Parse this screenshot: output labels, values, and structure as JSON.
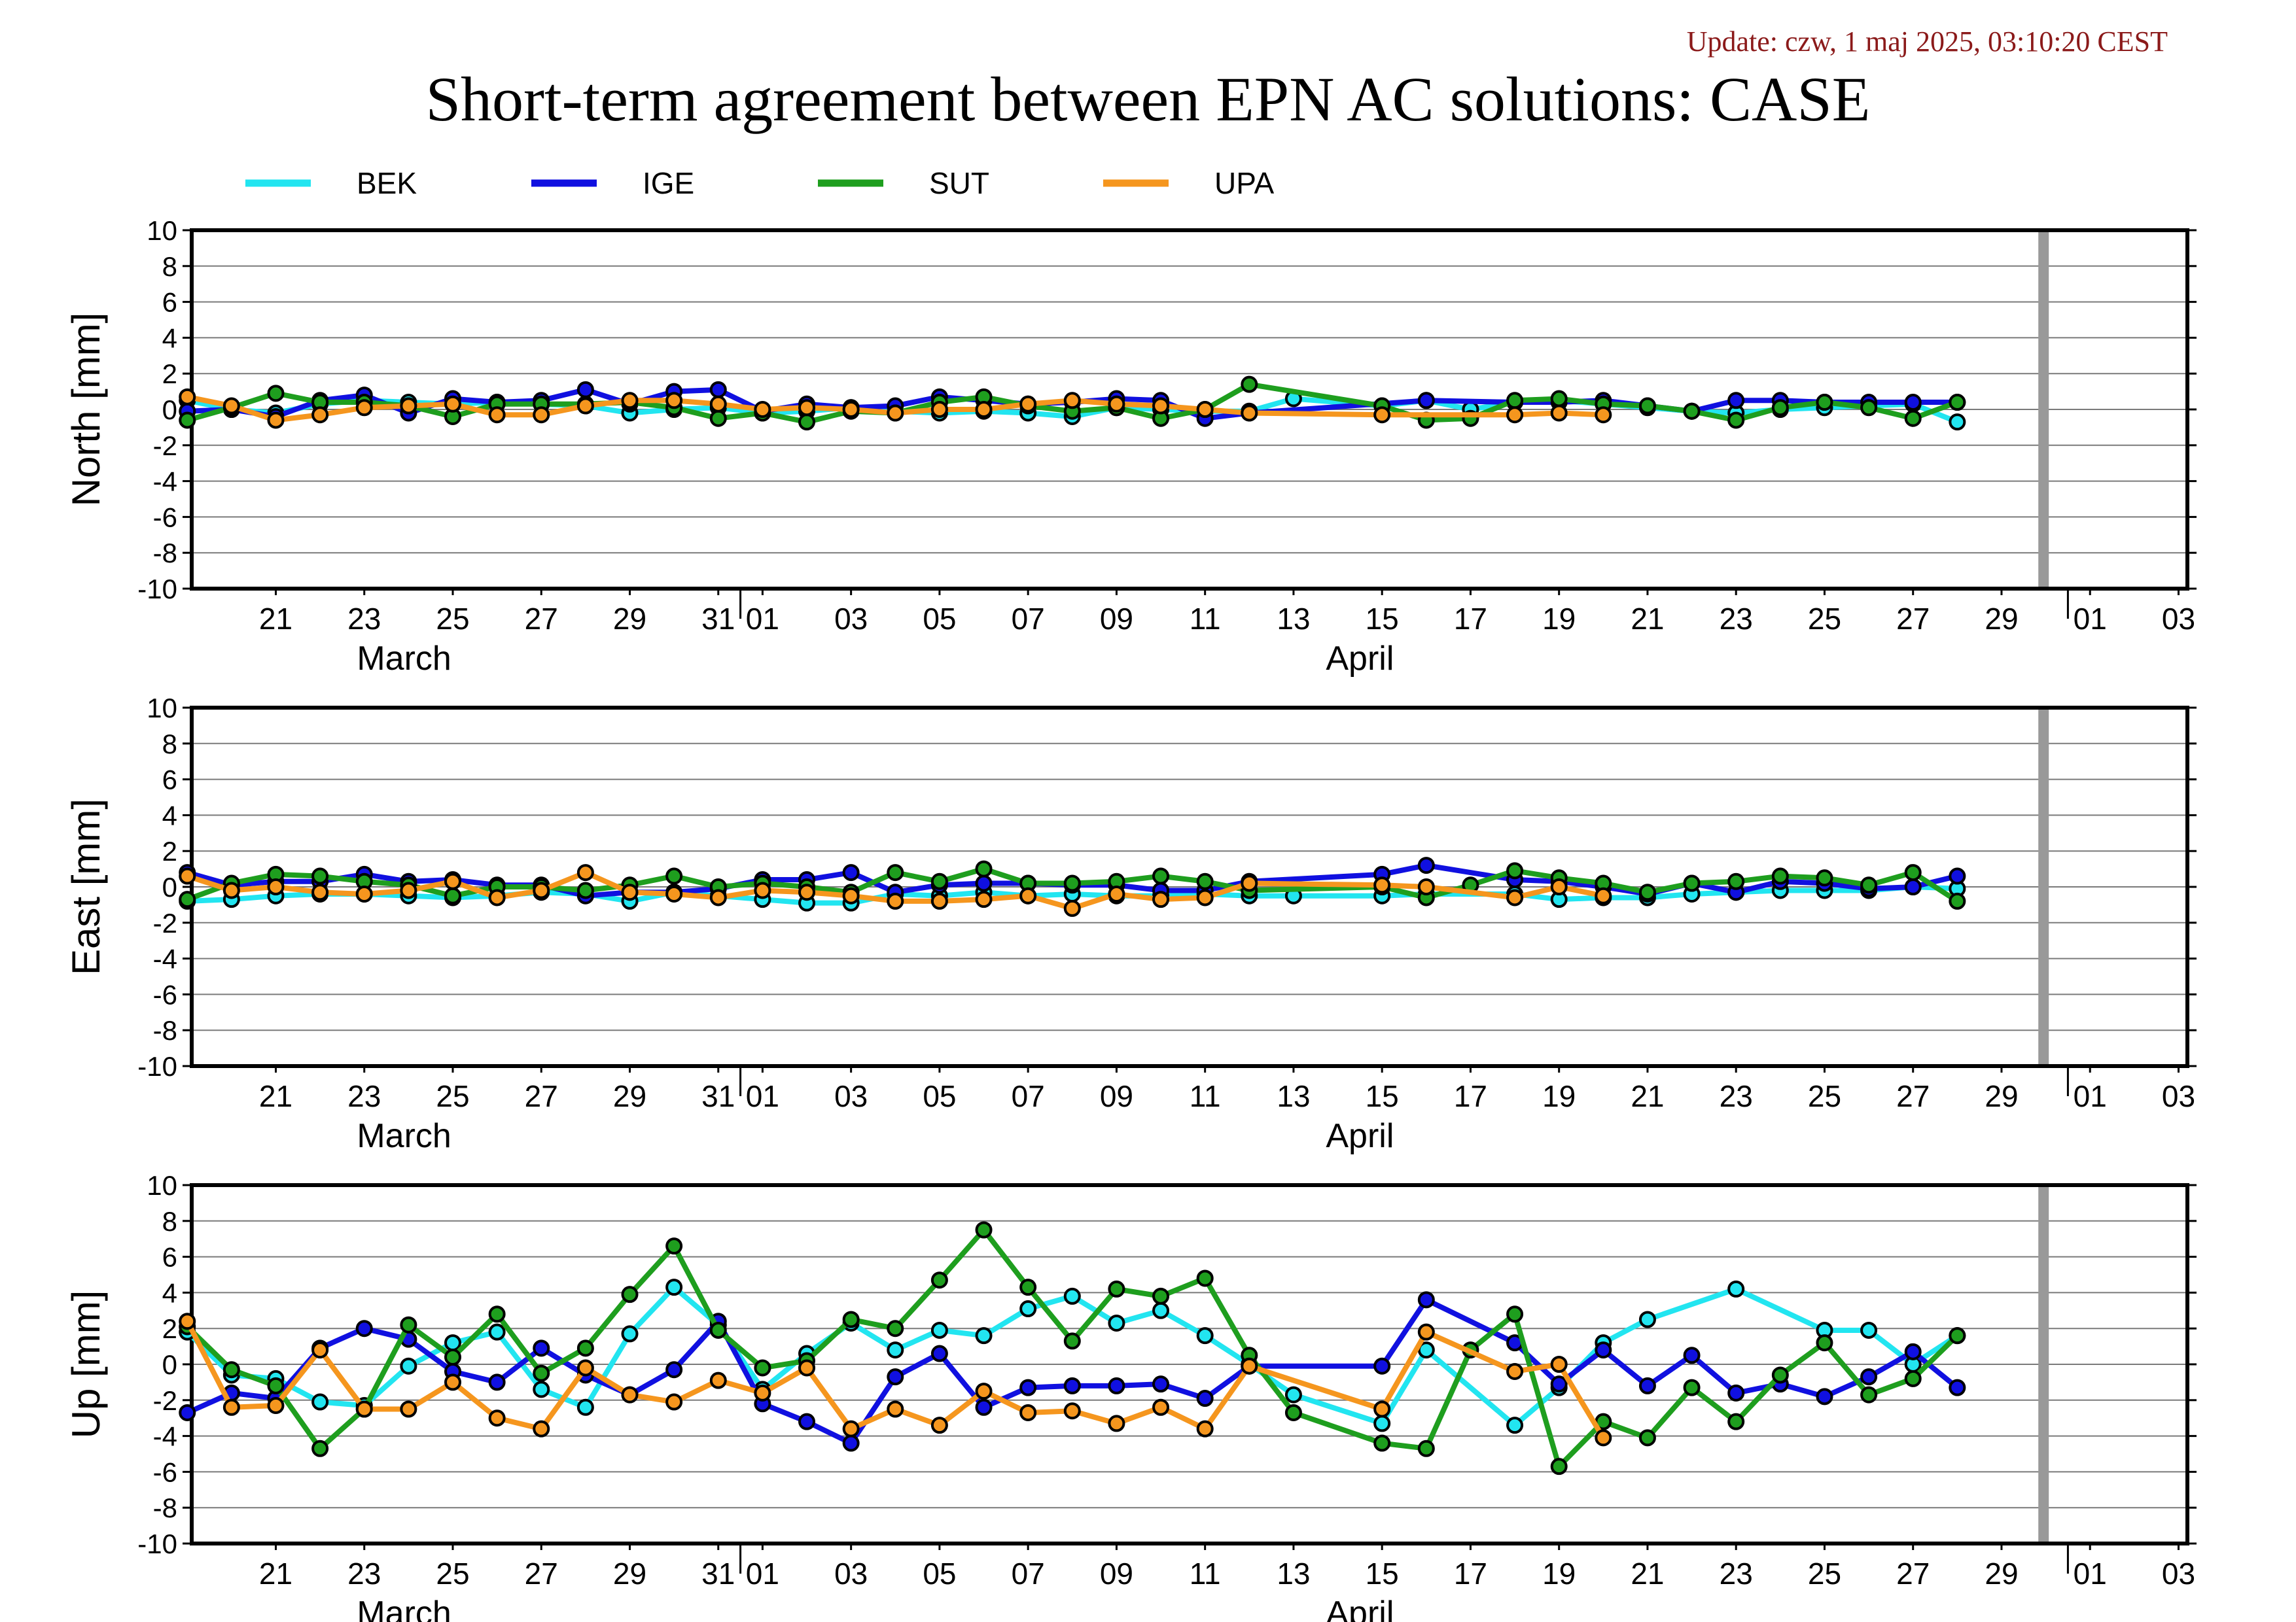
{
  "header": {
    "update": "Update: czw, 1 maj 2025, 03:10:20 CEST",
    "title": "Short-term agreement between EPN AC solutions: CASE"
  },
  "chart_data": {
    "type": "line",
    "title": "Short-term agreement between EPN AC solutions: CASE",
    "x_days": [
      19,
      20,
      21,
      22,
      23,
      24,
      25,
      26,
      27,
      28,
      29,
      30,
      31,
      32,
      33,
      34,
      35,
      36,
      37,
      38,
      39,
      40,
      41,
      42,
      43,
      44,
      45,
      46,
      47,
      48,
      49,
      50,
      51,
      52,
      53,
      54,
      55,
      56,
      57,
      58,
      59,
      60,
      61
    ],
    "x_day_ref": "19 = March 19, 2025; 32 = April 01",
    "xlim": [
      19.1,
      64.2
    ],
    "marker_day": 60,
    "x_ticks": [
      {
        "d": 21,
        "label": "21"
      },
      {
        "d": 23,
        "label": "23"
      },
      {
        "d": 25,
        "label": "25"
      },
      {
        "d": 27,
        "label": "27"
      },
      {
        "d": 29,
        "label": "29"
      },
      {
        "d": 31,
        "label": "31"
      },
      {
        "d": 32,
        "label": "01"
      },
      {
        "d": 34,
        "label": "03"
      },
      {
        "d": 36,
        "label": "05"
      },
      {
        "d": 38,
        "label": "07"
      },
      {
        "d": 40,
        "label": "09"
      },
      {
        "d": 42,
        "label": "11"
      },
      {
        "d": 44,
        "label": "13"
      },
      {
        "d": 46,
        "label": "15"
      },
      {
        "d": 48,
        "label": "17"
      },
      {
        "d": 50,
        "label": "19"
      },
      {
        "d": 52,
        "label": "21"
      },
      {
        "d": 54,
        "label": "23"
      },
      {
        "d": 56,
        "label": "25"
      },
      {
        "d": 58,
        "label": "27"
      },
      {
        "d": 60,
        "label": "29"
      },
      {
        "d": 62,
        "label": "01"
      },
      {
        "d": 64,
        "label": "03"
      }
    ],
    "months": [
      {
        "d": 23.5,
        "label": "March"
      },
      {
        "d": 45,
        "label": "April"
      },
      {
        "d": 45,
        "label": "April"
      },
      {
        "d": 45,
        "label": "April"
      }
    ],
    "month_labels": {
      "march": "March",
      "april": "April"
    },
    "ylim": [
      -10,
      10
    ],
    "y_ticks": [
      10,
      8,
      6,
      4,
      2,
      0,
      -2,
      -4,
      -6,
      -8,
      -10
    ],
    "legend": [
      {
        "name": "BEK",
        "color": "#22e5f0"
      },
      {
        "name": "IGE",
        "color": "#1010e0"
      },
      {
        "name": "SUT",
        "color": "#1e9e1e"
      },
      {
        "name": "UPA",
        "color": "#f5961e"
      }
    ],
    "panels": [
      {
        "ylabel": "North [mm]",
        "series": {
          "BEK": [
            0.5,
            0.0,
            -0.2,
            0.3,
            0.5,
            0.4,
            0.3,
            0.4,
            0.3,
            0.2,
            -0.2,
            0.0,
            0.1,
            -0.2,
            -0.1,
            0.1,
            -0.1,
            -0.2,
            -0.1,
            -0.2,
            -0.4,
            0.1,
            0.0,
            -0.1,
            -0.1,
            0.6,
            null,
            0.2,
            0.5,
            0.0,
            0.4,
            0.5,
            0.3,
            0.1,
            -0.1,
            -0.2,
            0.0,
            0.1,
            0.2,
            0.3,
            -0.7,
            null,
            null
          ],
          "IGE": [
            -0.1,
            0.0,
            -0.4,
            0.5,
            0.8,
            -0.2,
            0.6,
            0.4,
            0.5,
            1.1,
            0.3,
            1.0,
            1.1,
            -0.1,
            0.3,
            0.1,
            0.2,
            0.7,
            0.5,
            0.3,
            0.4,
            0.6,
            0.5,
            -0.5,
            -0.2,
            null,
            null,
            null,
            0.5,
            null,
            0.4,
            0.4,
            0.5,
            0.2,
            -0.1,
            0.5,
            0.5,
            0.4,
            0.4,
            0.4,
            0.4,
            null,
            null
          ],
          "SUT": [
            -0.6,
            0.1,
            0.9,
            0.4,
            0.4,
            0.2,
            -0.4,
            0.3,
            0.3,
            0.3,
            0.4,
            0.1,
            -0.5,
            -0.2,
            -0.7,
            -0.1,
            -0.2,
            0.4,
            0.7,
            0.2,
            -0.1,
            0.1,
            -0.5,
            0.0,
            1.4,
            null,
            null,
            0.2,
            -0.6,
            -0.5,
            0.5,
            0.6,
            0.3,
            0.2,
            -0.1,
            -0.6,
            0.1,
            0.4,
            0.1,
            -0.5,
            0.4,
            null,
            null
          ],
          "UPA": [
            0.7,
            0.2,
            -0.6,
            -0.3,
            0.1,
            0.2,
            0.3,
            -0.3,
            -0.3,
            0.2,
            0.5,
            0.5,
            0.3,
            0.0,
            0.1,
            0.0,
            -0.2,
            0.0,
            0.0,
            0.3,
            0.5,
            0.3,
            0.2,
            0.0,
            -0.2,
            null,
            null,
            -0.3,
            null,
            null,
            -0.3,
            -0.2,
            -0.3,
            null,
            null,
            null,
            null,
            null,
            null,
            null,
            null,
            null,
            null
          ]
        }
      },
      {
        "ylabel": "East [mm]",
        "series": {
          "BEK": [
            -0.8,
            -0.7,
            -0.5,
            -0.4,
            -0.4,
            -0.5,
            -0.6,
            -0.5,
            -0.3,
            -0.4,
            -0.8,
            -0.3,
            -0.5,
            -0.7,
            -0.9,
            -0.9,
            -0.4,
            -0.5,
            -0.3,
            -0.5,
            -0.4,
            -0.5,
            -0.5,
            -0.4,
            -0.5,
            -0.5,
            null,
            -0.5,
            -0.4,
            null,
            -0.4,
            -0.7,
            -0.6,
            -0.6,
            -0.4,
            -0.3,
            -0.2,
            -0.2,
            -0.2,
            0.0,
            -0.1,
            null,
            null
          ],
          "IGE": [
            0.8,
            0.1,
            0.3,
            0.3,
            0.7,
            0.3,
            0.4,
            0.1,
            0.1,
            -0.5,
            -0.3,
            -0.3,
            -0.1,
            0.4,
            0.4,
            0.8,
            -0.3,
            0.1,
            0.2,
            0.2,
            0.1,
            0.1,
            -0.2,
            -0.2,
            0.3,
            null,
            null,
            0.7,
            1.2,
            null,
            0.4,
            0.3,
            0.0,
            -0.4,
            0.2,
            -0.3,
            0.3,
            0.2,
            -0.1,
            0.0,
            0.6,
            null,
            null
          ],
          "SUT": [
            -0.7,
            0.2,
            0.7,
            0.6,
            0.3,
            0.1,
            -0.5,
            0.0,
            0.0,
            -0.2,
            0.1,
            0.6,
            0.0,
            0.2,
            0.0,
            -0.3,
            0.8,
            0.3,
            1.0,
            0.2,
            0.2,
            0.3,
            0.6,
            0.3,
            -0.2,
            null,
            null,
            0.0,
            -0.6,
            0.1,
            0.9,
            0.5,
            0.2,
            -0.3,
            0.2,
            0.3,
            0.6,
            0.5,
            0.1,
            0.8,
            -0.8,
            null,
            null
          ],
          "UPA": [
            0.6,
            -0.2,
            0.0,
            -0.3,
            -0.4,
            -0.2,
            0.3,
            -0.6,
            -0.2,
            0.8,
            -0.3,
            -0.4,
            -0.6,
            -0.2,
            -0.3,
            -0.5,
            -0.8,
            -0.8,
            -0.7,
            -0.5,
            -1.2,
            -0.4,
            -0.7,
            -0.6,
            0.2,
            null,
            null,
            0.1,
            0.0,
            null,
            -0.6,
            0.0,
            -0.5,
            null,
            null,
            null,
            null,
            null,
            null,
            null,
            null,
            null,
            null
          ]
        }
      },
      {
        "ylabel": "Up [mm]",
        "series": {
          "BEK": [
            1.8,
            -0.6,
            -0.8,
            -2.1,
            -2.3,
            -0.1,
            1.2,
            1.8,
            -1.4,
            -2.4,
            1.7,
            4.3,
            2.2,
            -1.4,
            0.6,
            2.3,
            0.8,
            1.9,
            1.6,
            3.1,
            3.8,
            2.3,
            3.0,
            1.6,
            0.0,
            -1.7,
            null,
            -3.3,
            0.8,
            null,
            -3.4,
            -1.3,
            1.2,
            2.5,
            null,
            4.2,
            null,
            1.9,
            1.9,
            0.0,
            1.6,
            null,
            null
          ],
          "IGE": [
            -2.7,
            -1.6,
            -1.9,
            0.9,
            2.0,
            1.4,
            -0.4,
            -1.0,
            0.9,
            -0.6,
            -1.7,
            -0.3,
            2.4,
            -2.2,
            -3.2,
            -4.4,
            -0.7,
            0.6,
            -2.4,
            -1.3,
            -1.2,
            -1.2,
            -1.1,
            -1.9,
            -0.1,
            null,
            null,
            -0.1,
            3.6,
            null,
            1.2,
            -1.1,
            0.8,
            -1.2,
            0.5,
            -1.6,
            -1.1,
            -1.8,
            -0.7,
            0.7,
            -1.3,
            null,
            null
          ],
          "SUT": [
            2.1,
            -0.3,
            -1.2,
            -4.7,
            -2.5,
            2.2,
            0.4,
            2.8,
            -0.5,
            0.9,
            3.9,
            6.6,
            1.9,
            -0.2,
            0.2,
            2.5,
            2.0,
            4.7,
            7.5,
            4.3,
            1.3,
            4.2,
            3.8,
            4.8,
            0.5,
            -2.7,
            null,
            -4.4,
            -4.7,
            0.8,
            2.8,
            -5.7,
            -3.2,
            -4.1,
            -1.3,
            -3.2,
            -0.6,
            1.2,
            -1.7,
            -0.8,
            1.6,
            null,
            null
          ],
          "UPA": [
            2.4,
            -2.4,
            -2.3,
            0.8,
            -2.5,
            -2.5,
            -1.0,
            -3.0,
            -3.6,
            -0.2,
            -1.7,
            -2.1,
            -0.9,
            -1.6,
            -0.2,
            -3.6,
            -2.5,
            -3.4,
            -1.5,
            -2.7,
            -2.6,
            -3.3,
            -2.4,
            -3.6,
            -0.1,
            null,
            null,
            -2.5,
            1.8,
            null,
            -0.4,
            0.0,
            -4.1,
            null,
            null,
            null,
            null,
            null,
            null,
            null,
            null,
            null,
            null
          ]
        }
      }
    ]
  }
}
